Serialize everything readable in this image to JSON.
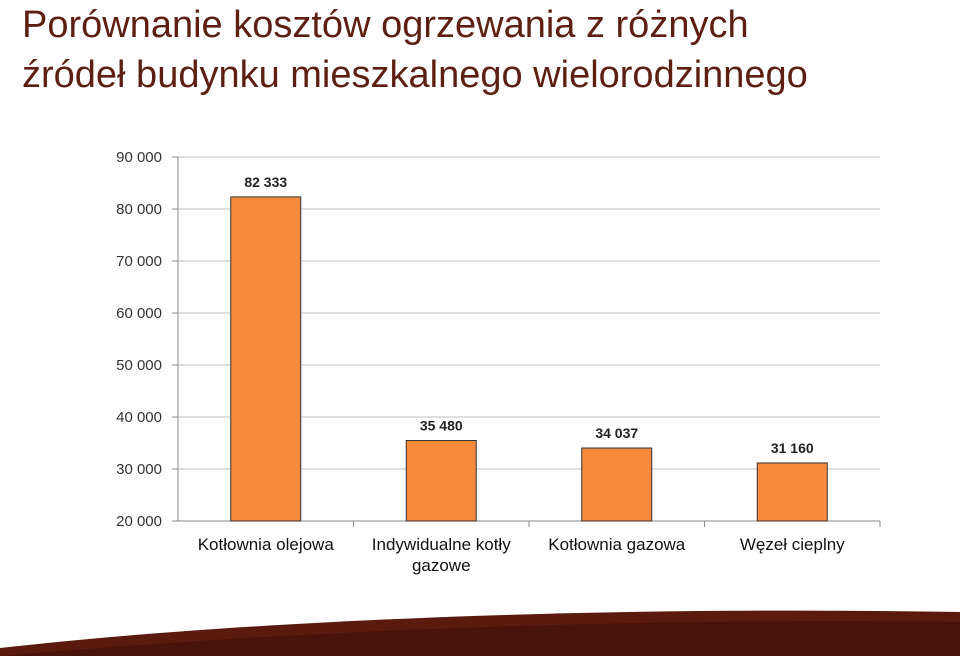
{
  "slide": {
    "title_line1": "Porównanie kosztów ogrzewania z różnych",
    "title_line2": "źródeł budynku mieszkalnego wielorodzinnego"
  },
  "colors": {
    "bar": "#f58a3c",
    "bar_stroke": "#333333",
    "title": "#5c1f12",
    "band": "#5a1a0e",
    "grid": "#bfbfbf"
  },
  "chart_data": {
    "type": "bar",
    "categories": [
      "Kotłownia olejowa",
      "Indywidualne kotły gazowe",
      "Kotłownia gazowa",
      "Węzeł cieplny"
    ],
    "values": [
      82333,
      35480,
      34037,
      31160
    ],
    "data_labels": [
      "82 333",
      "35 480",
      "34 037",
      "31 160"
    ],
    "ylim": [
      20000,
      90000
    ],
    "yticks": [
      20000,
      30000,
      40000,
      50000,
      60000,
      70000,
      80000,
      90000
    ],
    "ytick_labels": [
      "20 000",
      "30 000",
      "40 000",
      "50 000",
      "60 000",
      "70 000",
      "80 000",
      "90 000"
    ],
    "grid": true,
    "legend": "none",
    "title": "",
    "xlabel": "",
    "ylabel": ""
  }
}
